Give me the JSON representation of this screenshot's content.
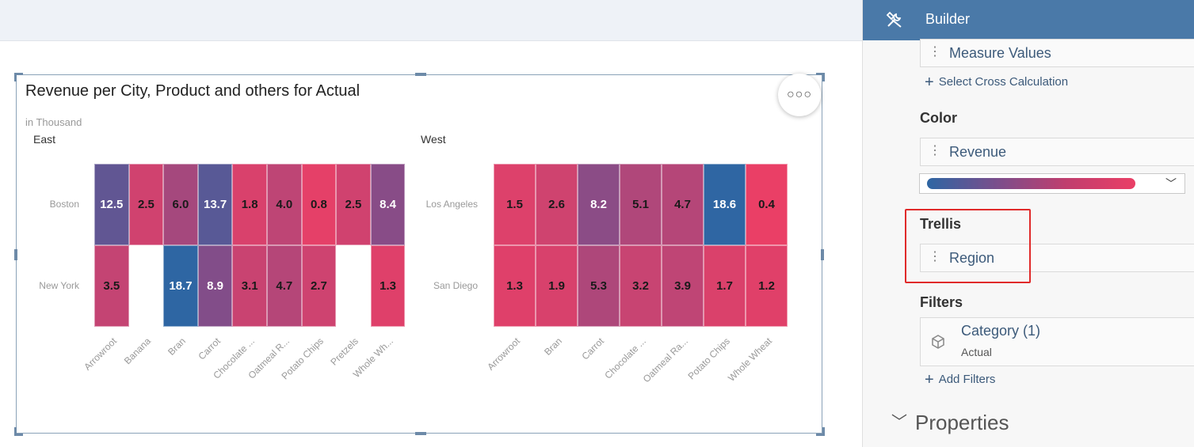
{
  "chart": {
    "title": "Revenue per City, Product and others for Actual",
    "subtitle": "in Thousand",
    "more_icon": "more-options-icon"
  },
  "chart_data": {
    "type": "heatmap",
    "title": "Revenue per City, Product and others for Actual",
    "unit": "in Thousand",
    "color_scale": [
      "#2e66a3",
      "#ea3f66"
    ],
    "panels": [
      {
        "region": "East",
        "cities": [
          "Boston",
          "New York"
        ],
        "products": [
          "Arrowroot",
          "Banana",
          "Bran",
          "Carrot",
          "Chocolate ...",
          "Oatmeal R...",
          "Potato Chips",
          "Pretzels",
          "Whole Wh..."
        ],
        "values": [
          [
            12.5,
            2.5,
            6.0,
            13.7,
            1.8,
            4.0,
            0.8,
            2.5,
            8.4
          ],
          [
            3.5,
            null,
            18.7,
            8.9,
            3.1,
            4.7,
            2.7,
            null,
            1.3
          ]
        ]
      },
      {
        "region": "West",
        "cities": [
          "Los Angeles",
          "San Diego"
        ],
        "products": [
          "Arrowroot",
          "Bran",
          "Carrot",
          "Chocolate ...",
          "Oatmeal Ra...",
          "Potato Chips",
          "Whole Wheat"
        ],
        "values": [
          [
            1.5,
            2.6,
            8.2,
            5.1,
            4.7,
            18.6,
            0.4
          ],
          [
            1.3,
            1.9,
            5.3,
            3.2,
            3.9,
            1.7,
            1.2
          ]
        ]
      }
    ],
    "vmin": 0.4,
    "vmax": 18.7
  },
  "builder": {
    "title": "Builder",
    "icon": "tools-icon",
    "measure_token": "Measure Values",
    "select_cross_calc": "Select Cross Calculation",
    "color_section": "Color",
    "color_token": "Revenue",
    "trellis_section": "Trellis",
    "trellis_token": "Region",
    "filters_section": "Filters",
    "filter_name": "Category (1)",
    "filter_value": "Actual",
    "add_filters": "Add Filters",
    "properties": "Properties"
  }
}
